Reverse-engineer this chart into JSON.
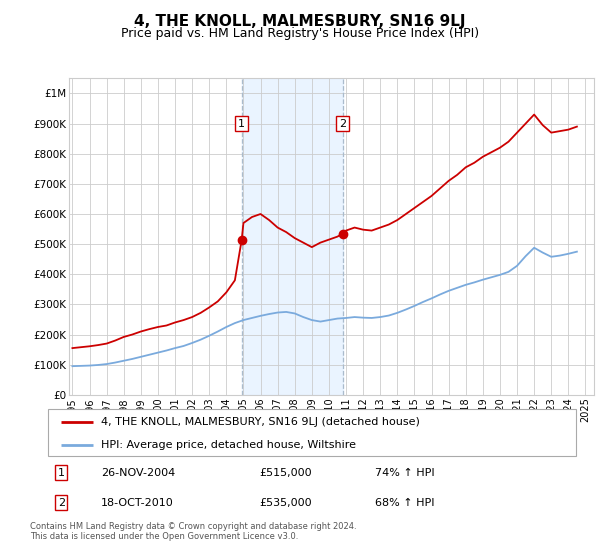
{
  "title": "4, THE KNOLL, MALMESBURY, SN16 9LJ",
  "subtitle": "Price paid vs. HM Land Registry's House Price Index (HPI)",
  "title_fontsize": 11,
  "subtitle_fontsize": 9,
  "ylim": [
    0,
    1050000
  ],
  "xlim_start": 1994.8,
  "xlim_end": 2025.5,
  "yticks": [
    0,
    100000,
    200000,
    300000,
    400000,
    500000,
    600000,
    700000,
    800000,
    900000,
    1000000
  ],
  "ytick_labels": [
    "£0",
    "£100K",
    "£200K",
    "£300K",
    "£400K",
    "£500K",
    "£600K",
    "£700K",
    "£800K",
    "£900K",
    "£1M"
  ],
  "xticks": [
    1995,
    1996,
    1997,
    1998,
    1999,
    2000,
    2001,
    2002,
    2003,
    2004,
    2005,
    2006,
    2007,
    2008,
    2009,
    2010,
    2011,
    2012,
    2013,
    2014,
    2015,
    2016,
    2017,
    2018,
    2019,
    2020,
    2021,
    2022,
    2023,
    2024,
    2025
  ],
  "sale1_x": 2004.9,
  "sale1_y": 515000,
  "sale1_label": "1",
  "sale1_date": "26-NOV-2004",
  "sale1_price": "£515,000",
  "sale1_hpi": "74% ↑ HPI",
  "sale2_x": 2010.8,
  "sale2_y": 535000,
  "sale2_label": "2",
  "sale2_date": "18-OCT-2010",
  "sale2_price": "£535,000",
  "sale2_hpi": "68% ↑ HPI",
  "shade_color": "#ddeeff",
  "shade_alpha": 0.6,
  "red_line_color": "#cc0000",
  "blue_line_color": "#7aaadd",
  "marker_color": "#cc0000",
  "marker_size": 6,
  "legend_red_label": "4, THE KNOLL, MALMESBURY, SN16 9LJ (detached house)",
  "legend_blue_label": "HPI: Average price, detached house, Wiltshire",
  "footer": "Contains HM Land Registry data © Crown copyright and database right 2024.\nThis data is licensed under the Open Government Licence v3.0.",
  "red_x": [
    1995.0,
    1995.5,
    1996.0,
    1996.5,
    1997.0,
    1997.5,
    1998.0,
    1998.5,
    1999.0,
    1999.5,
    2000.0,
    2000.5,
    2001.0,
    2001.5,
    2002.0,
    2002.5,
    2003.0,
    2003.5,
    2004.0,
    2004.5,
    2004.9,
    2005.0,
    2005.5,
    2006.0,
    2006.5,
    2007.0,
    2007.5,
    2008.0,
    2008.5,
    2009.0,
    2009.5,
    2010.0,
    2010.5,
    2010.8,
    2011.0,
    2011.5,
    2012.0,
    2012.5,
    2013.0,
    2013.5,
    2014.0,
    2014.5,
    2015.0,
    2015.5,
    2016.0,
    2016.5,
    2017.0,
    2017.5,
    2018.0,
    2018.5,
    2019.0,
    2019.5,
    2020.0,
    2020.5,
    2021.0,
    2021.5,
    2022.0,
    2022.5,
    2023.0,
    2023.5,
    2024.0,
    2024.5
  ],
  "red_y": [
    155000,
    158000,
    161000,
    165000,
    170000,
    180000,
    192000,
    200000,
    210000,
    218000,
    225000,
    230000,
    240000,
    248000,
    258000,
    272000,
    290000,
    310000,
    340000,
    380000,
    515000,
    570000,
    590000,
    600000,
    580000,
    555000,
    540000,
    520000,
    505000,
    490000,
    505000,
    515000,
    525000,
    535000,
    545000,
    555000,
    548000,
    545000,
    555000,
    565000,
    580000,
    600000,
    620000,
    640000,
    660000,
    685000,
    710000,
    730000,
    755000,
    770000,
    790000,
    805000,
    820000,
    840000,
    870000,
    900000,
    930000,
    895000,
    870000,
    875000,
    880000,
    890000
  ],
  "blue_x": [
    1995.0,
    1995.5,
    1996.0,
    1996.5,
    1997.0,
    1997.5,
    1998.0,
    1998.5,
    1999.0,
    1999.5,
    2000.0,
    2000.5,
    2001.0,
    2001.5,
    2002.0,
    2002.5,
    2003.0,
    2003.5,
    2004.0,
    2004.5,
    2005.0,
    2005.5,
    2006.0,
    2006.5,
    2007.0,
    2007.5,
    2008.0,
    2008.5,
    2009.0,
    2009.5,
    2010.0,
    2010.5,
    2011.0,
    2011.5,
    2012.0,
    2012.5,
    2013.0,
    2013.5,
    2014.0,
    2014.5,
    2015.0,
    2015.5,
    2016.0,
    2016.5,
    2017.0,
    2017.5,
    2018.0,
    2018.5,
    2019.0,
    2019.5,
    2020.0,
    2020.5,
    2021.0,
    2021.5,
    2022.0,
    2022.5,
    2023.0,
    2023.5,
    2024.0,
    2024.5
  ],
  "blue_y": [
    95000,
    96000,
    97000,
    99000,
    102000,
    107000,
    113000,
    119000,
    126000,
    133000,
    140000,
    147000,
    155000,
    162000,
    172000,
    183000,
    196000,
    210000,
    225000,
    238000,
    248000,
    255000,
    262000,
    268000,
    273000,
    275000,
    270000,
    258000,
    248000,
    243000,
    248000,
    253000,
    255000,
    258000,
    256000,
    255000,
    258000,
    263000,
    272000,
    283000,
    295000,
    308000,
    320000,
    333000,
    345000,
    355000,
    365000,
    373000,
    382000,
    390000,
    398000,
    408000,
    428000,
    460000,
    488000,
    472000,
    458000,
    462000,
    468000,
    475000
  ]
}
